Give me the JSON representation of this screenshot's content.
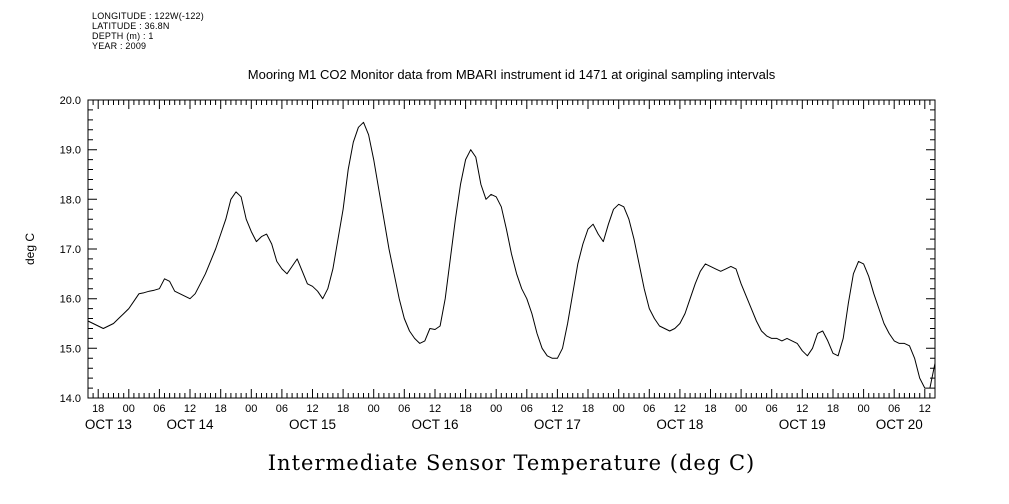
{
  "metadata_block": {
    "lines": [
      "LONGITUDE : 122W(-122)",
      "LATITUDE : 36.8N",
      "DEPTH (m) : 1",
      "YEAR : 2009"
    ]
  },
  "chart_data": {
    "type": "line",
    "title": "Mooring M1 CO2 Monitor data from MBARI instrument id 1471 at original sampling intervals",
    "bottom_title": "Intermediate Sensor Temperature (deg C)",
    "ylabel": "deg C",
    "ylim": [
      14.0,
      20.0
    ],
    "y_major_step": 1.0,
    "y_minor_step": 0.2,
    "y_tick_labels": [
      "20.0",
      "19.0",
      "18.0",
      "17.0",
      "16.0",
      "15.0",
      "14.0"
    ],
    "grid": false,
    "legend": false,
    "line_color": "#000000",
    "background": "#ffffff",
    "x_axis": {
      "unit": "hours from OCT 13 16:00",
      "start": 0,
      "end": 166,
      "first_label": 2,
      "label_step": 6,
      "minor_step": 1,
      "hour_labels": [
        "18",
        "00",
        "06",
        "12",
        "18",
        "00",
        "06",
        "12",
        "18",
        "00",
        "06",
        "12",
        "18",
        "00",
        "06",
        "12",
        "18",
        "00",
        "06",
        "12",
        "18",
        "00",
        "06",
        "12",
        "18",
        "00",
        "06",
        "12"
      ],
      "date_labels": [
        {
          "label": "OCT 13",
          "start": 0,
          "end": 8
        },
        {
          "label": "OCT 14",
          "start": 8,
          "end": 32
        },
        {
          "label": "OCT 15",
          "start": 32,
          "end": 56
        },
        {
          "label": "OCT 16",
          "start": 56,
          "end": 80
        },
        {
          "label": "OCT 17",
          "start": 80,
          "end": 104
        },
        {
          "label": "OCT 18",
          "start": 104,
          "end": 128
        },
        {
          "label": "OCT 19",
          "start": 128,
          "end": 152
        },
        {
          "label": "OCT 20",
          "start": 152,
          "end": 166
        }
      ]
    },
    "series": [
      {
        "name": "Intermediate Sensor Temperature (deg C)",
        "start_hour": 0,
        "step_hours": 1,
        "values": [
          15.55,
          15.5,
          15.45,
          15.4,
          15.45,
          15.5,
          15.6,
          15.7,
          15.8,
          15.95,
          16.1,
          16.12,
          16.15,
          16.17,
          16.2,
          16.4,
          16.35,
          16.15,
          16.1,
          16.05,
          16.0,
          16.1,
          16.3,
          16.5,
          16.75,
          17.0,
          17.3,
          17.6,
          18.0,
          18.15,
          18.05,
          17.6,
          17.35,
          17.15,
          17.25,
          17.3,
          17.1,
          16.75,
          16.6,
          16.5,
          16.65,
          16.8,
          16.55,
          16.3,
          16.25,
          16.15,
          16.0,
          16.2,
          16.6,
          17.2,
          17.8,
          18.6,
          19.15,
          19.45,
          19.55,
          19.3,
          18.8,
          18.2,
          17.6,
          17.0,
          16.5,
          16.0,
          15.6,
          15.35,
          15.2,
          15.1,
          15.15,
          15.4,
          15.38,
          15.45,
          16.0,
          16.8,
          17.6,
          18.3,
          18.8,
          19.0,
          18.85,
          18.3,
          18.0,
          18.1,
          18.05,
          17.85,
          17.4,
          16.9,
          16.5,
          16.2,
          16.0,
          15.7,
          15.3,
          15.0,
          14.85,
          14.8,
          14.8,
          15.0,
          15.5,
          16.1,
          16.7,
          17.1,
          17.4,
          17.5,
          17.3,
          17.15,
          17.5,
          17.8,
          17.9,
          17.85,
          17.6,
          17.2,
          16.7,
          16.2,
          15.8,
          15.6,
          15.45,
          15.4,
          15.35,
          15.4,
          15.5,
          15.7,
          16.0,
          16.3,
          16.55,
          16.7,
          16.65,
          16.6,
          16.55,
          16.6,
          16.65,
          16.6,
          16.3,
          16.05,
          15.8,
          15.55,
          15.35,
          15.25,
          15.2,
          15.2,
          15.15,
          15.2,
          15.15,
          15.1,
          14.95,
          14.85,
          15.0,
          15.3,
          15.35,
          15.15,
          14.9,
          14.85,
          15.2,
          15.9,
          16.5,
          16.75,
          16.7,
          16.45,
          16.1,
          15.8,
          15.5,
          15.3,
          15.15,
          15.1,
          15.1,
          15.05,
          14.8,
          14.4,
          14.2,
          14.2,
          14.7
        ]
      }
    ]
  }
}
